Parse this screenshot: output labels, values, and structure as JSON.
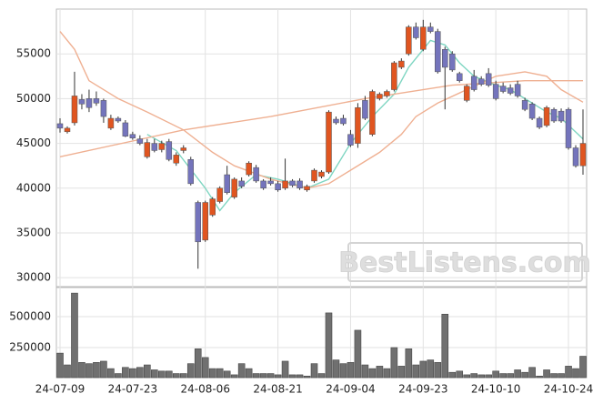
{
  "chart_data": {
    "type": "candlestick",
    "watermark": "BestListens.com",
    "categories": [
      "24-07-09",
      null,
      null,
      null,
      null,
      null,
      null,
      null,
      null,
      null,
      "24-07-23",
      null,
      null,
      null,
      null,
      null,
      null,
      null,
      null,
      null,
      "24-08-06",
      null,
      null,
      null,
      null,
      null,
      null,
      null,
      null,
      null,
      "24-08-21",
      null,
      null,
      null,
      null,
      null,
      null,
      null,
      null,
      null,
      "24-09-04",
      null,
      null,
      null,
      null,
      null,
      null,
      null,
      null,
      null,
      "24-09-23",
      null,
      null,
      null,
      null,
      null,
      null,
      null,
      null,
      null,
      "24-10-10",
      null,
      null,
      null,
      null,
      null,
      null,
      null,
      null,
      null,
      "24-10-24",
      null,
      null
    ],
    "candles": {
      "open": [
        47200,
        46300,
        47300,
        49900,
        50000,
        50000,
        49800,
        46700,
        47800,
        47300,
        46000,
        45500,
        43500,
        45000,
        44300,
        45200,
        42800,
        44200,
        43200,
        38400,
        34200,
        37000,
        38500,
        41500,
        39000,
        40800,
        41500,
        42300,
        40800,
        40800,
        40500,
        40000,
        40800,
        40800,
        39800,
        40800,
        41300,
        41800,
        47700,
        47800,
        46000,
        45000,
        49800,
        46000,
        50000,
        50300,
        51000,
        53500,
        55000,
        58000,
        55500,
        58000,
        57500,
        55500,
        55000,
        52800,
        49800,
        52500,
        52200,
        52800,
        51600,
        51400,
        51200,
        51600,
        49800,
        49400,
        47800,
        47000,
        48800,
        48600,
        48800,
        44500,
        42500
      ],
      "high": [
        47800,
        46900,
        53000,
        50500,
        51000,
        50800,
        50000,
        48200,
        48000,
        47600,
        46300,
        45900,
        45500,
        45500,
        45300,
        45500,
        44000,
        44800,
        43500,
        38600,
        38600,
        39000,
        40200,
        42500,
        41200,
        41200,
        43000,
        42600,
        41000,
        41200,
        40800,
        43300,
        41000,
        41100,
        40400,
        42200,
        42000,
        48700,
        48000,
        48200,
        46500,
        49500,
        50300,
        51000,
        50700,
        51000,
        54200,
        54500,
        58200,
        58500,
        58800,
        58500,
        57800,
        55800,
        55300,
        53000,
        51600,
        53200,
        52500,
        53400,
        52000,
        51800,
        51600,
        52000,
        50100,
        49600,
        48000,
        49200,
        49000,
        48900,
        49000,
        44800,
        48800
      ],
      "low": [
        46200,
        46100,
        47000,
        48800,
        48500,
        49200,
        47300,
        46500,
        47300,
        45700,
        45400,
        44800,
        43300,
        44000,
        44000,
        43000,
        42500,
        43900,
        40300,
        31000,
        34000,
        36800,
        38300,
        39300,
        38800,
        40000,
        41300,
        40600,
        39800,
        40300,
        39600,
        39800,
        40100,
        39800,
        39600,
        40600,
        41100,
        41600,
        47100,
        47000,
        44600,
        44500,
        47600,
        45800,
        49800,
        50100,
        50800,
        53300,
        54800,
        56600,
        55300,
        57300,
        52800,
        48800,
        53000,
        51800,
        49600,
        50800,
        51400,
        51300,
        49800,
        50600,
        50400,
        50100,
        48600,
        47600,
        46600,
        46800,
        47300,
        47300,
        44300,
        42300,
        41500
      ],
      "close": [
        46700,
        46700,
        50300,
        49400,
        49000,
        49500,
        48000,
        47800,
        47500,
        45800,
        45600,
        45000,
        45100,
        44200,
        45000,
        43200,
        43700,
        44500,
        40500,
        34000,
        38400,
        38800,
        40000,
        39500,
        41000,
        40200,
        42800,
        40800,
        40000,
        40500,
        39800,
        40800,
        40300,
        40000,
        40200,
        42000,
        41800,
        48500,
        47300,
        47200,
        44800,
        49000,
        47800,
        50800,
        50500,
        50800,
        54000,
        54200,
        58000,
        56800,
        58000,
        57500,
        53000,
        53500,
        53200,
        52000,
        51400,
        51000,
        51600,
        51500,
        50000,
        50800,
        50600,
        50300,
        48800,
        47800,
        46800,
        49000,
        47500,
        47500,
        44500,
        42500,
        45000
      ],
      "up_color": "#e05520",
      "down_color": "#7474bc"
    },
    "moving_averages": [
      {
        "color": "#7fd6c2",
        "x": [
          12,
          16,
          20,
          22,
          24,
          27,
          30,
          34,
          37,
          40,
          43,
          46,
          48,
          51,
          53,
          55,
          57,
          60,
          62,
          64,
          67,
          69,
          72
        ],
        "values": [
          46000,
          44200,
          40000,
          37500,
          39500,
          41500,
          41000,
          40000,
          41000,
          45000,
          48000,
          50500,
          53500,
          56500,
          56000,
          54000,
          52500,
          51500,
          51000,
          50000,
          48500,
          47800,
          45500
        ]
      },
      {
        "color": "#efb092",
        "x": [
          0,
          2,
          4,
          8,
          12,
          17,
          21,
          24,
          29,
          34,
          37,
          40,
          44,
          47,
          49,
          52,
          56,
          60,
          64,
          67,
          69,
          72
        ],
        "values": [
          57500,
          55500,
          52000,
          50000,
          48500,
          46500,
          44000,
          42500,
          41000,
          40000,
          40500,
          42000,
          44000,
          46000,
          48000,
          49500,
          51000,
          52500,
          53000,
          52500,
          51000,
          49600
        ]
      },
      {
        "color": "#efb092",
        "x": [
          0,
          17,
          29,
          42,
          54,
          64,
          72
        ],
        "values": [
          43500,
          46500,
          48000,
          50000,
          51500,
          52000,
          52000
        ]
      }
    ],
    "ylim": [
      29000,
      60000
    ],
    "yticks": [
      30000,
      35000,
      40000,
      45000,
      50000,
      55000
    ],
    "volume": {
      "color": "#707070",
      "values": [
        205000,
        110000,
        690000,
        130000,
        120000,
        130000,
        140000,
        80000,
        40000,
        90000,
        80000,
        90000,
        110000,
        70000,
        60000,
        60000,
        40000,
        40000,
        120000,
        240000,
        170000,
        80000,
        80000,
        60000,
        30000,
        120000,
        80000,
        40000,
        40000,
        40000,
        30000,
        140000,
        30000,
        30000,
        20000,
        120000,
        40000,
        530000,
        150000,
        120000,
        130000,
        390000,
        110000,
        80000,
        100000,
        80000,
        250000,
        100000,
        240000,
        110000,
        140000,
        150000,
        130000,
        520000,
        50000,
        60000,
        30000,
        40000,
        30000,
        30000,
        60000,
        40000,
        40000,
        70000,
        50000,
        90000,
        20000,
        70000,
        40000,
        40000,
        100000,
        80000,
        180000
      ],
      "ylim": [
        0,
        735000
      ],
      "yticks": [
        250000,
        500000
      ]
    },
    "grid": true
  }
}
